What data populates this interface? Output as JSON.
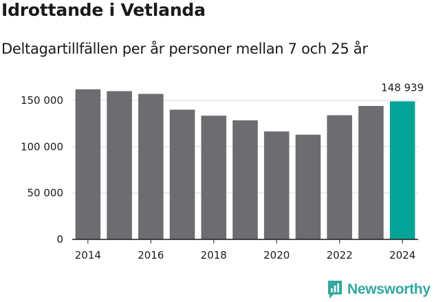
{
  "header": {
    "title": "Idrottande i Vetlanda",
    "subtitle": "Deltagartillfällen per år personer mellan 7 och 25 år"
  },
  "brand": {
    "name": "Newsworthy",
    "icon": "newsworthy-logo-icon"
  },
  "colors": {
    "bar": "#6d6c70",
    "highlight": "#03a497",
    "grid": "#d9d9d9",
    "axis": "#1a1a1a",
    "brand": "#2fa8a0"
  },
  "chart_data": {
    "type": "bar",
    "title": "Idrottande i Vetlanda",
    "subtitle": "Deltagartillfällen per år personer mellan 7 och 25 år",
    "xlabel": "",
    "ylabel": "",
    "categories": [
      "2014",
      "2015",
      "2016",
      "2017",
      "2018",
      "2019",
      "2020",
      "2021",
      "2022",
      "2023",
      "2024"
    ],
    "values": [
      162000,
      160000,
      157000,
      140000,
      133500,
      128500,
      116500,
      113000,
      134000,
      144000,
      148939
    ],
    "highlight_index": 10,
    "data_labels": [
      {
        "index": 10,
        "text": "148 939"
      }
    ],
    "ylim": [
      0,
      170000
    ],
    "yticks": [
      0,
      50000,
      100000,
      150000
    ],
    "ytick_labels": [
      "0",
      "50 000",
      "100 000",
      "150 000"
    ],
    "xticks": [
      "2014",
      "2016",
      "2018",
      "2020",
      "2022",
      "2024"
    ],
    "grid": true,
    "legend": "none"
  }
}
